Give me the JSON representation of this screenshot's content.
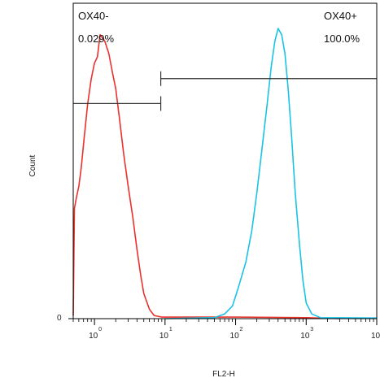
{
  "chart_data": {
    "type": "histogram",
    "xlabel": "FL2-H",
    "ylabel": "Count",
    "x_scale": "log",
    "xlim": [
      0.5,
      10000
    ],
    "x_ticks": [
      {
        "value": 1,
        "base": "10",
        "exp": "0"
      },
      {
        "value": 10,
        "base": "10",
        "exp": "1"
      },
      {
        "value": 100,
        "base": "10",
        "exp": "2"
      },
      {
        "value": 1000,
        "base": "10",
        "exp": "3"
      },
      {
        "value": 10000,
        "base": "10",
        "exp": "4"
      }
    ],
    "y_ticks": [
      {
        "value": 0,
        "label": "0"
      }
    ],
    "ylim": [
      0,
      100
    ],
    "gates": [
      {
        "name": "OX40-",
        "range": [
          0.5,
          8.7
        ],
        "percent": "0.029%",
        "level": 68.2
      },
      {
        "name": "OX40+",
        "range": [
          8.7,
          10000
        ],
        "percent": "100.0%",
        "level": 76.1
      }
    ],
    "series": [
      {
        "color": "#e8322e",
        "points": [
          [
            0.5,
            1
          ],
          [
            0.52,
            35
          ],
          [
            0.55,
            38
          ],
          [
            0.6,
            42
          ],
          [
            0.65,
            48
          ],
          [
            0.72,
            58
          ],
          [
            0.8,
            68
          ],
          [
            0.9,
            76
          ],
          [
            1.0,
            81
          ],
          [
            1.1,
            83
          ],
          [
            1.2,
            90
          ],
          [
            1.4,
            88
          ],
          [
            1.6,
            84
          ],
          [
            1.8,
            78
          ],
          [
            2.0,
            73
          ],
          [
            2.3,
            62
          ],
          [
            2.6,
            52
          ],
          [
            3.0,
            42
          ],
          [
            3.5,
            32
          ],
          [
            4.0,
            22
          ],
          [
            4.5,
            14
          ],
          [
            5.0,
            8
          ],
          [
            6.0,
            3
          ],
          [
            7.0,
            1
          ],
          [
            9.0,
            0.5
          ],
          [
            100,
            0.5
          ],
          [
            1000,
            0.3
          ],
          [
            3000,
            0
          ]
        ]
      },
      {
        "color": "#19c3e6",
        "points": [
          [
            10,
            0
          ],
          [
            50,
            0.3
          ],
          [
            70,
            1.5
          ],
          [
            90,
            4
          ],
          [
            110,
            10
          ],
          [
            140,
            18
          ],
          [
            170,
            28
          ],
          [
            200,
            40
          ],
          [
            240,
            55
          ],
          [
            280,
            68
          ],
          [
            320,
            80
          ],
          [
            360,
            88
          ],
          [
            400,
            92
          ],
          [
            450,
            90
          ],
          [
            500,
            84
          ],
          [
            560,
            72
          ],
          [
            620,
            58
          ],
          [
            700,
            40
          ],
          [
            800,
            24
          ],
          [
            900,
            12
          ],
          [
            1000,
            5
          ],
          [
            1200,
            1.5
          ],
          [
            1600,
            0.3
          ],
          [
            10000,
            0.2
          ]
        ]
      }
    ]
  }
}
